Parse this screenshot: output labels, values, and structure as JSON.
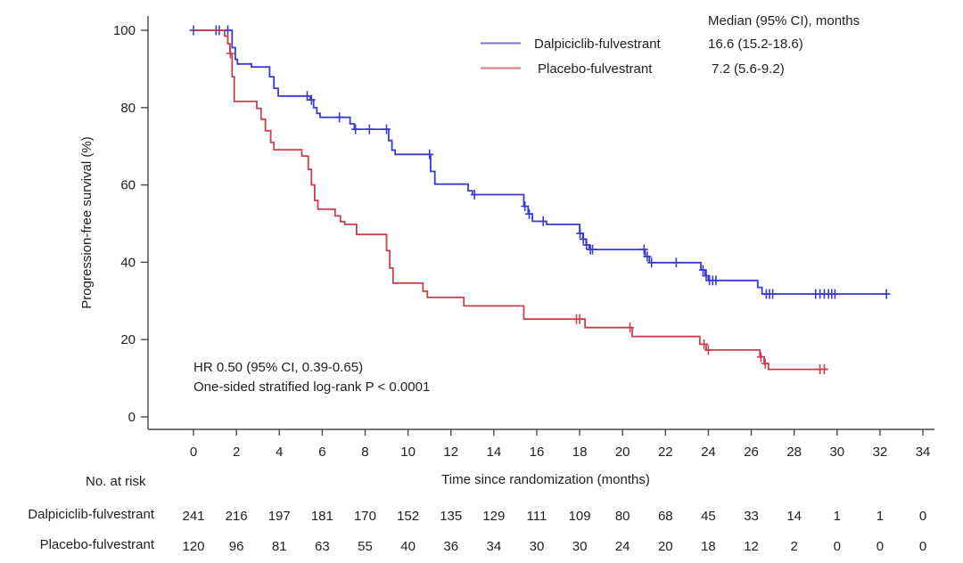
{
  "chart_data": {
    "type": "line",
    "subtype": "kaplan-meier-step",
    "title": "",
    "x_axis": {
      "label": "Time since randomization (months)",
      "ticks": [
        0,
        2,
        4,
        6,
        8,
        10,
        12,
        14,
        16,
        18,
        20,
        22,
        24,
        26,
        28,
        30,
        32,
        34
      ],
      "range": [
        0,
        34
      ]
    },
    "y_axis": {
      "label": "Progression-free survival (%)",
      "ticks": [
        0,
        20,
        40,
        60,
        80,
        100
      ],
      "range": [
        0,
        100
      ]
    },
    "legend": {
      "header": "Median (95% CI), months",
      "position": "top-right"
    },
    "annotations": [
      "HR 0.50 (95% CI, 0.39-0.65)",
      "One-sided stratified log-rank P < 0.0001"
    ],
    "colors": {
      "axis": "#4a4a4c",
      "text": "#212121"
    },
    "series": [
      {
        "name": "Dalpiciclib-fulvestrant",
        "median_label": "16.6 (15.2-18.6)",
        "color": "#3a3ad0",
        "start": [
          0,
          100
        ],
        "end_time": 32.4,
        "steps": [
          [
            1.8,
            95.5
          ],
          [
            1.95,
            92.5
          ],
          [
            2.05,
            91.3
          ],
          [
            2.7,
            90.5
          ],
          [
            3.55,
            88
          ],
          [
            3.75,
            85
          ],
          [
            3.95,
            83
          ],
          [
            5.45,
            82
          ],
          [
            5.6,
            80
          ],
          [
            5.75,
            78.5
          ],
          [
            5.9,
            77.5
          ],
          [
            7.3,
            75.8
          ],
          [
            7.5,
            74.4
          ],
          [
            9.1,
            71.5
          ],
          [
            9.25,
            69
          ],
          [
            9.4,
            67.9
          ],
          [
            11.05,
            63.5
          ],
          [
            11.25,
            60.2
          ],
          [
            12.8,
            58.5
          ],
          [
            13.0,
            57.5
          ],
          [
            15.4,
            54.5
          ],
          [
            15.6,
            52.5
          ],
          [
            15.8,
            50.6
          ],
          [
            16.45,
            49.8
          ],
          [
            18.0,
            47.5
          ],
          [
            18.15,
            46
          ],
          [
            18.3,
            44.5
          ],
          [
            18.45,
            43.3
          ],
          [
            21.05,
            41.5
          ],
          [
            21.25,
            39.9
          ],
          [
            23.65,
            38
          ],
          [
            23.85,
            36.5
          ],
          [
            24.0,
            35.3
          ],
          [
            26.3,
            33.5
          ],
          [
            26.5,
            31.8
          ]
        ],
        "censors": [
          [
            0,
            100
          ],
          [
            1.05,
            100
          ],
          [
            1.2,
            100
          ],
          [
            1.6,
            100
          ],
          [
            5.3,
            83
          ],
          [
            5.5,
            82
          ],
          [
            6.8,
            77.5
          ],
          [
            7.55,
            74.4
          ],
          [
            8.2,
            74.4
          ],
          [
            9.0,
            74.4
          ],
          [
            11.0,
            67.9
          ],
          [
            13.1,
            57.5
          ],
          [
            15.45,
            54.5
          ],
          [
            15.65,
            52.5
          ],
          [
            16.3,
            50.6
          ],
          [
            18.02,
            47.5
          ],
          [
            18.17,
            46
          ],
          [
            18.32,
            44.5
          ],
          [
            18.5,
            43.3
          ],
          [
            18.6,
            43.3
          ],
          [
            21.0,
            43.3
          ],
          [
            21.15,
            41.5
          ],
          [
            21.35,
            39.9
          ],
          [
            22.5,
            39.9
          ],
          [
            23.75,
            38
          ],
          [
            23.9,
            36.5
          ],
          [
            24.05,
            35.3
          ],
          [
            24.2,
            35.3
          ],
          [
            24.35,
            35.3
          ],
          [
            26.7,
            31.8
          ],
          [
            26.85,
            31.8
          ],
          [
            27.0,
            31.8
          ],
          [
            29.0,
            31.8
          ],
          [
            29.2,
            31.8
          ],
          [
            29.4,
            31.8
          ],
          [
            29.6,
            31.8
          ],
          [
            29.75,
            31.8
          ],
          [
            29.9,
            31.8
          ],
          [
            32.3,
            31.8
          ]
        ]
      },
      {
        "name": "Placebo-fulvestrant",
        "median_label": "7.2 (5.6-9.2)",
        "color": "#c8404e",
        "start": [
          0,
          100
        ],
        "end_time": 29.5,
        "steps": [
          [
            1.45,
            98.5
          ],
          [
            1.6,
            96.5
          ],
          [
            1.7,
            94
          ],
          [
            1.8,
            88
          ],
          [
            1.9,
            81.6
          ],
          [
            2.95,
            79.8
          ],
          [
            3.15,
            77
          ],
          [
            3.35,
            74
          ],
          [
            3.6,
            71
          ],
          [
            3.75,
            69.1
          ],
          [
            5.05,
            67.5
          ],
          [
            5.35,
            64
          ],
          [
            5.5,
            60
          ],
          [
            5.65,
            56
          ],
          [
            5.8,
            53.7
          ],
          [
            6.6,
            52
          ],
          [
            6.85,
            50.5
          ],
          [
            7.05,
            49.8
          ],
          [
            7.6,
            47.2
          ],
          [
            9.0,
            43
          ],
          [
            9.15,
            38.5
          ],
          [
            9.3,
            34.6
          ],
          [
            10.7,
            32.5
          ],
          [
            10.9,
            30.9
          ],
          [
            12.6,
            28.7
          ],
          [
            15.4,
            25.3
          ],
          [
            18.25,
            23.1
          ],
          [
            20.45,
            20.8
          ],
          [
            23.6,
            18.8
          ],
          [
            23.9,
            17.3
          ],
          [
            26.4,
            15.5
          ],
          [
            26.6,
            13.8
          ],
          [
            26.8,
            12.3
          ]
        ],
        "censors": [
          [
            1.72,
            94
          ],
          [
            17.85,
            25.3
          ],
          [
            18.0,
            25.3
          ],
          [
            20.35,
            23.1
          ],
          [
            23.8,
            18.8
          ],
          [
            24.0,
            17.3
          ],
          [
            26.45,
            15.5
          ],
          [
            26.65,
            13.8
          ],
          [
            29.2,
            12.3
          ],
          [
            29.4,
            12.3
          ]
        ]
      }
    ]
  },
  "risk_table": {
    "title": "No. at risk",
    "times": [
      0,
      2,
      4,
      6,
      8,
      10,
      12,
      14,
      16,
      18,
      20,
      22,
      24,
      26,
      28,
      30,
      32,
      34
    ],
    "rows": [
      {
        "name": "Dalpiciclib-fulvestrant",
        "counts": [
          241,
          216,
          197,
          181,
          170,
          152,
          135,
          129,
          111,
          109,
          80,
          68,
          45,
          33,
          14,
          1,
          1,
          0
        ]
      },
      {
        "name": "Placebo-fulvestrant",
        "counts": [
          120,
          96,
          81,
          63,
          55,
          40,
          36,
          34,
          30,
          30,
          24,
          20,
          18,
          12,
          2,
          0,
          0,
          0
        ]
      }
    ]
  }
}
